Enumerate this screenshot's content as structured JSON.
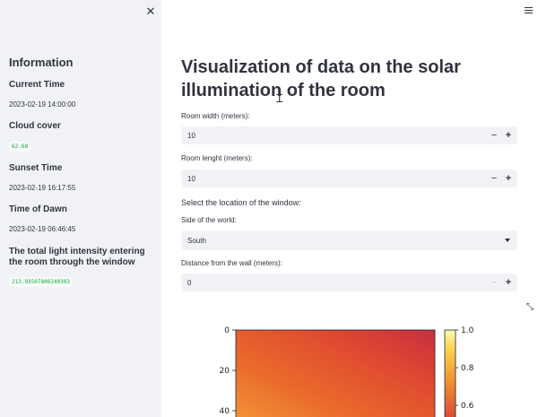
{
  "sidebar": {
    "close_icon": "close-icon",
    "title": "Information",
    "current_time_label": "Current Time",
    "current_time_value": "2023-02-19 14:00:00",
    "cloud_cover_label": "Cloud cover",
    "cloud_cover_value": "62.68",
    "sunset_label": "Sunset Time",
    "sunset_value": "2023-02-19 16:17:55",
    "dawn_label": "Time of Dawn",
    "dawn_value": "2023-02-19 06:46:45",
    "intensity_label": "The total light intensity entering the room through the window",
    "intensity_value": "213.93507806240303"
  },
  "main": {
    "menu_icon": "hamburger-menu-icon",
    "title": "Visualization of data on the solar illumination of the room",
    "room_width_label": "Room width (meters):",
    "room_width_value": "10",
    "room_length_label": "Room lenght (meters):",
    "room_length_value": "10",
    "window_location_label": "Select the location of the window:",
    "side_label": "Side of the world:",
    "side_value": "South",
    "distance_label": "Distance from the wall (meters):",
    "distance_value": "0",
    "minus_symbol": "−",
    "plus_symbol": "+"
  },
  "chart_data": {
    "type": "heatmap",
    "y_ticks": [
      "0",
      "20",
      "40"
    ],
    "colorbar_ticks": [
      "1.0",
      "0.8",
      "0.6"
    ],
    "colormap": [
      "#c72f3f",
      "#e34e2d",
      "#f07a2e",
      "#f9a43a"
    ]
  }
}
